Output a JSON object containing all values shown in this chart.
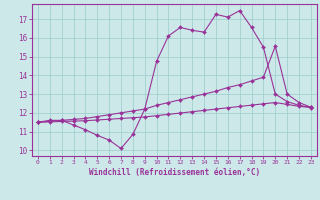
{
  "background_color": "#cce8e8",
  "grid_color": "#99cccc",
  "line_color": "#993399",
  "spine_color": "#993399",
  "xlim": [
    -0.5,
    23.5
  ],
  "ylim": [
    9.7,
    17.8
  ],
  "yticks": [
    10,
    11,
    12,
    13,
    14,
    15,
    16,
    17
  ],
  "xticks": [
    0,
    1,
    2,
    3,
    4,
    5,
    6,
    7,
    8,
    9,
    10,
    11,
    12,
    13,
    14,
    15,
    16,
    17,
    18,
    19,
    20,
    21,
    22,
    23
  ],
  "xlabel": "Windchill (Refroidissement éolien,°C)",
  "line1_x": [
    0,
    1,
    2,
    3,
    4,
    5,
    6,
    7,
    8,
    9,
    10,
    11,
    12,
    13,
    14,
    15,
    16,
    17,
    18,
    19,
    20,
    21,
    22,
    23
  ],
  "line1_y": [
    11.5,
    11.6,
    11.6,
    11.35,
    11.1,
    10.8,
    10.55,
    10.1,
    10.85,
    12.2,
    14.75,
    16.1,
    16.55,
    16.4,
    16.3,
    17.25,
    17.1,
    17.45,
    16.55,
    15.5,
    13.0,
    12.6,
    12.4,
    12.3
  ],
  "line2_x": [
    0,
    1,
    2,
    3,
    4,
    5,
    6,
    7,
    8,
    9,
    10,
    11,
    12,
    13,
    14,
    15,
    16,
    17,
    18,
    19,
    20,
    21,
    22,
    23
  ],
  "line2_y": [
    11.5,
    11.55,
    11.6,
    11.65,
    11.7,
    11.8,
    11.9,
    12.0,
    12.1,
    12.2,
    12.4,
    12.55,
    12.7,
    12.85,
    13.0,
    13.15,
    13.35,
    13.5,
    13.7,
    13.9,
    15.55,
    13.0,
    12.55,
    12.3
  ],
  "line3_x": [
    0,
    1,
    2,
    3,
    4,
    5,
    6,
    7,
    8,
    9,
    10,
    11,
    12,
    13,
    14,
    15,
    16,
    17,
    18,
    19,
    20,
    21,
    22,
    23
  ],
  "line3_y": [
    11.5,
    11.52,
    11.54,
    11.56,
    11.58,
    11.62,
    11.66,
    11.7,
    11.74,
    11.78,
    11.85,
    11.92,
    11.99,
    12.06,
    12.13,
    12.2,
    12.27,
    12.34,
    12.41,
    12.48,
    12.55,
    12.45,
    12.35,
    12.28
  ]
}
